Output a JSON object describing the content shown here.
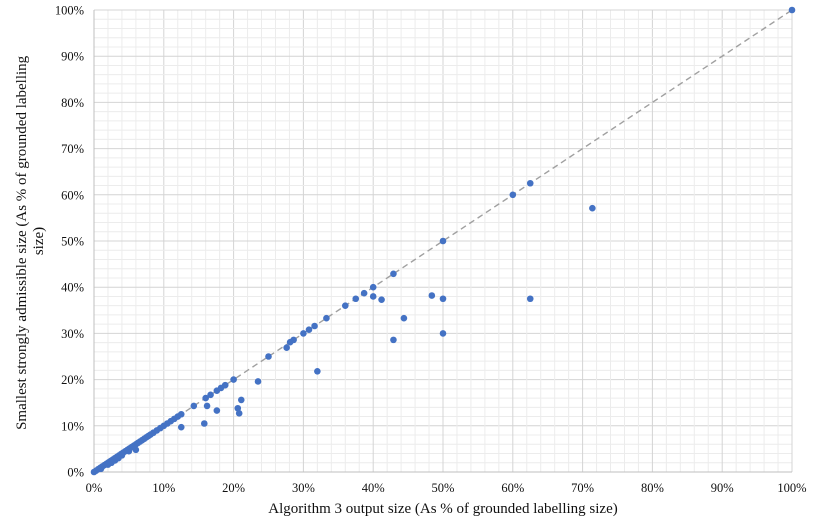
{
  "chart_data": {
    "type": "scatter",
    "title": "",
    "xlabel": "Algorithm 3 output size (As % of grounded labelling size)",
    "ylabel_line1": "Smallest strongly admissible size (As % of grounded labelling",
    "ylabel_line2": "size)",
    "xlim": [
      0,
      100
    ],
    "ylim": [
      0,
      100
    ],
    "x_ticks": [
      "0%",
      "10%",
      "20%",
      "30%",
      "40%",
      "50%",
      "60%",
      "70%",
      "80%",
      "90%",
      "100%"
    ],
    "y_ticks": [
      "0%",
      "10%",
      "20%",
      "30%",
      "40%",
      "50%",
      "60%",
      "70%",
      "80%",
      "90%",
      "100%"
    ],
    "grid": true,
    "minor_grid": true,
    "reference_line": "y = x (dashed)",
    "point_color": "#4472c4",
    "reference_color": "#a0a0a0",
    "points": [
      [
        0,
        0
      ],
      [
        0.3,
        0.3
      ],
      [
        0.6,
        0.6
      ],
      [
        0.9,
        0.9
      ],
      [
        1.2,
        1.2
      ],
      [
        1.5,
        1.5
      ],
      [
        1.8,
        1.8
      ],
      [
        2.1,
        2.1
      ],
      [
        2.4,
        2.4
      ],
      [
        2.7,
        2.7
      ],
      [
        3.0,
        3.0
      ],
      [
        3.3,
        3.3
      ],
      [
        3.6,
        3.6
      ],
      [
        3.9,
        3.9
      ],
      [
        4.2,
        4.2
      ],
      [
        4.5,
        4.5
      ],
      [
        4.8,
        4.8
      ],
      [
        5.1,
        5.1
      ],
      [
        5.4,
        5.4
      ],
      [
        5.7,
        5.7
      ],
      [
        6.0,
        6.0
      ],
      [
        6.3,
        6.3
      ],
      [
        6.6,
        6.6
      ],
      [
        6.9,
        6.9
      ],
      [
        7.2,
        7.2
      ],
      [
        7.5,
        7.5
      ],
      [
        7.8,
        7.8
      ],
      [
        8.1,
        8.1
      ],
      [
        8.5,
        8.5
      ],
      [
        9.0,
        9.0
      ],
      [
        9.5,
        9.5
      ],
      [
        10.0,
        10.0
      ],
      [
        10.5,
        10.5
      ],
      [
        11.0,
        11.0
      ],
      [
        11.5,
        11.5
      ],
      [
        12.0,
        12.0
      ],
      [
        12.5,
        12.5
      ],
      [
        1.0,
        0.7
      ],
      [
        2.0,
        1.6
      ],
      [
        3.0,
        2.5
      ],
      [
        4.0,
        3.6
      ],
      [
        5.0,
        4.5
      ],
      [
        6.0,
        4.8
      ],
      [
        2.5,
        2.0
      ],
      [
        3.5,
        3.0
      ],
      [
        12.5,
        9.7
      ],
      [
        14.3,
        14.3
      ],
      [
        16.0,
        16.0
      ],
      [
        16.7,
        16.7
      ],
      [
        17.6,
        17.6
      ],
      [
        18.2,
        18.2
      ],
      [
        18.8,
        18.8
      ],
      [
        15.8,
        10.5
      ],
      [
        16.2,
        14.3
      ],
      [
        17.6,
        13.3
      ],
      [
        20.0,
        20.0
      ],
      [
        20.6,
        13.8
      ],
      [
        20.8,
        12.7
      ],
      [
        21.1,
        15.6
      ],
      [
        23.5,
        19.6
      ],
      [
        25.0,
        25.0
      ],
      [
        27.6,
        26.9
      ],
      [
        28.1,
        28.1
      ],
      [
        28.6,
        28.6
      ],
      [
        30.0,
        30.0
      ],
      [
        30.8,
        30.8
      ],
      [
        31.6,
        31.6
      ],
      [
        32.0,
        21.8
      ],
      [
        33.3,
        33.3
      ],
      [
        36.0,
        36.0
      ],
      [
        37.5,
        37.5
      ],
      [
        38.7,
        38.7
      ],
      [
        40.0,
        40.0
      ],
      [
        40.0,
        38.0
      ],
      [
        41.2,
        37.3
      ],
      [
        42.9,
        42.9
      ],
      [
        42.9,
        28.6
      ],
      [
        44.4,
        33.3
      ],
      [
        48.4,
        38.2
      ],
      [
        50.0,
        50.0
      ],
      [
        50.0,
        37.5
      ],
      [
        50.0,
        30.0
      ],
      [
        60.0,
        60.0
      ],
      [
        62.5,
        62.5
      ],
      [
        62.5,
        37.5
      ],
      [
        71.4,
        57.1
      ],
      [
        100.0,
        100.0
      ]
    ]
  }
}
